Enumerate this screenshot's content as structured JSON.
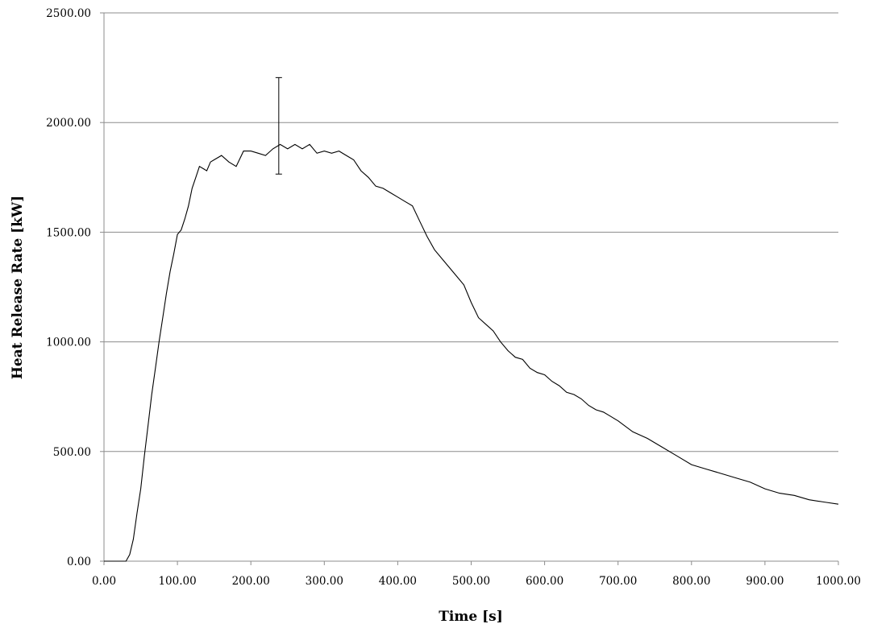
{
  "chart_data": {
    "type": "line",
    "title": "",
    "xlabel": "Time [s]",
    "ylabel": "Heat Release Rate [kW]",
    "xlim": [
      0,
      1000
    ],
    "ylim": [
      0,
      2500
    ],
    "x_ticks": [
      "0.00",
      "100.00",
      "200.00",
      "300.00",
      "400.00",
      "500.00",
      "600.00",
      "700.00",
      "800.00",
      "900.00",
      "1000.00"
    ],
    "y_ticks": [
      "0.00",
      "500.00",
      "1000.00",
      "1500.00",
      "2000.00",
      "2500.00"
    ],
    "grid": "horizontal",
    "legend": "none",
    "series_color": "#000000",
    "series": [
      {
        "x": [
          0,
          10,
          20,
          30,
          35,
          40,
          45,
          50,
          55,
          60,
          65,
          70,
          75,
          80,
          85,
          90,
          95,
          100,
          105,
          110,
          115,
          120,
          125,
          130,
          135,
          140,
          145,
          150,
          160,
          170,
          180,
          190,
          200,
          210,
          220,
          230,
          240,
          250,
          260,
          270,
          280,
          290,
          300,
          310,
          320,
          330,
          340,
          350,
          360,
          370,
          380,
          390,
          400,
          410,
          420,
          430,
          440,
          450,
          460,
          470,
          480,
          490,
          500,
          510,
          520,
          530,
          540,
          550,
          560,
          570,
          580,
          590,
          600,
          610,
          620,
          630,
          640,
          650,
          660,
          670,
          680,
          690,
          700,
          720,
          740,
          760,
          780,
          800,
          820,
          840,
          860,
          880,
          900,
          920,
          940,
          960,
          980,
          1000
        ],
        "y": [
          0,
          0,
          0,
          0,
          30,
          100,
          220,
          330,
          480,
          620,
          760,
          880,
          1000,
          1110,
          1220,
          1320,
          1400,
          1490,
          1510,
          1560,
          1620,
          1700,
          1750,
          1800,
          1790,
          1780,
          1820,
          1830,
          1850,
          1820,
          1800,
          1870,
          1870,
          1860,
          1850,
          1880,
          1900,
          1880,
          1900,
          1880,
          1900,
          1860,
          1870,
          1860,
          1870,
          1850,
          1830,
          1780,
          1750,
          1710,
          1700,
          1680,
          1660,
          1640,
          1620,
          1550,
          1480,
          1420,
          1380,
          1340,
          1300,
          1260,
          1180,
          1110,
          1080,
          1050,
          1000,
          960,
          930,
          920,
          880,
          860,
          850,
          820,
          800,
          770,
          760,
          740,
          710,
          690,
          680,
          660,
          640,
          590,
          560,
          520,
          480,
          440,
          420,
          400,
          380,
          360,
          330,
          310,
          300,
          280,
          270,
          260
        ]
      }
    ],
    "error_bar": {
      "x": 238,
      "y": 1960,
      "low": 1765,
      "high": 2205
    }
  }
}
